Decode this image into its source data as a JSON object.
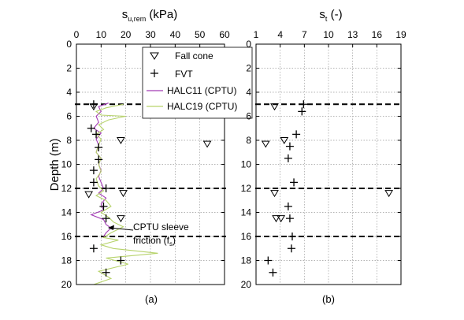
{
  "panels": {
    "a": {
      "label": "(a)",
      "title_main": "s",
      "title_sub": "u,rem",
      "title_rest": " (kPa)"
    },
    "b": {
      "label": "(b)",
      "title_main": "s",
      "title_sub": "t",
      "title_rest": " (-)"
    }
  },
  "ylabel": "Depth (m)",
  "legend": {
    "fall_cone": "Fall cone",
    "fvt": "FVT",
    "halc11": "HALC11 (CPTU)",
    "halc19": "HALC19 (CPTU)"
  },
  "annotation": {
    "line1": "CPTU sleeve",
    "line2_a": "friction (f",
    "line2_sub": "s",
    "line2_b": ")"
  },
  "colors": {
    "halc11": "#a23ab5",
    "halc19": "#b7d36b",
    "marker": "#000000",
    "grid": "#9a9a9a"
  },
  "chart_data": [
    {
      "type": "scatter",
      "ylabel": "Depth (m)",
      "xlim": [
        0,
        60
      ],
      "ylim": [
        20,
        0
      ],
      "xticks": [
        0,
        10,
        20,
        30,
        40,
        50,
        60
      ],
      "yticks": [
        0,
        2,
        4,
        6,
        8,
        10,
        12,
        14,
        16,
        18,
        20
      ],
      "grid": true,
      "legend_position": "top-right",
      "layer_boundaries_depth": [
        5,
        12,
        16
      ],
      "series": [
        {
          "name": "Fall cone",
          "marker": "triangle-down",
          "points": [
            [
              7,
              5.2
            ],
            [
              18,
              8
            ],
            [
              53,
              8.3
            ],
            [
              5,
              12.5
            ],
            [
              19,
              12.4
            ],
            [
              18,
              14.5
            ]
          ]
        },
        {
          "name": "FVT",
          "marker": "plus",
          "points": [
            [
              7,
              5
            ],
            [
              6,
              7
            ],
            [
              8,
              7.5
            ],
            [
              9,
              8.6
            ],
            [
              9,
              9.6
            ],
            [
              7,
              10.5
            ],
            [
              7,
              11.5
            ],
            [
              12,
              12
            ],
            [
              11,
              13.5
            ],
            [
              12,
              14.5
            ],
            [
              7,
              17
            ],
            [
              18,
              18
            ],
            [
              12,
              19
            ]
          ]
        },
        {
          "name": "HALC11 (CPTU)",
          "line": true,
          "points": [
            [
              13,
              4.9
            ],
            [
              9,
              5.2
            ],
            [
              10,
              5.6
            ],
            [
              8,
              6
            ],
            [
              9,
              6.5
            ],
            [
              7,
              7
            ],
            [
              10,
              7.4
            ],
            [
              8,
              7.9
            ],
            [
              9,
              8.4
            ],
            [
              8,
              9
            ],
            [
              10,
              9.5
            ],
            [
              9,
              10
            ],
            [
              10,
              10.5
            ],
            [
              9,
              11
            ],
            [
              10,
              11.5
            ],
            [
              11,
              12
            ],
            [
              9,
              12.4
            ],
            [
              12,
              12.8
            ],
            [
              10,
              13.3
            ],
            [
              11,
              13.8
            ],
            [
              6,
              14.2
            ],
            [
              11,
              14.6
            ],
            [
              12,
              15
            ],
            [
              14,
              15.3
            ],
            [
              12,
              15.7
            ],
            [
              11,
              16
            ]
          ]
        },
        {
          "name": "HALC19 (CPTU)",
          "line": true,
          "points": [
            [
              19,
              5
            ],
            [
              12,
              5.3
            ],
            [
              8,
              5.6
            ],
            [
              10,
              5.9
            ],
            [
              20,
              6
            ],
            [
              13,
              6.3
            ],
            [
              9,
              6.7
            ],
            [
              11,
              7.1
            ],
            [
              8,
              7.5
            ],
            [
              10,
              7.9
            ],
            [
              9,
              8.4
            ],
            [
              8,
              9
            ],
            [
              10,
              9.5
            ],
            [
              9,
              10
            ],
            [
              10,
              10.6
            ],
            [
              8,
              11.2
            ],
            [
              9,
              11.8
            ],
            [
              11,
              12.2
            ],
            [
              8,
              12.6
            ],
            [
              12,
              13
            ],
            [
              14,
              13.5
            ],
            [
              10,
              14
            ],
            [
              13,
              14.4
            ],
            [
              15,
              14.8
            ],
            [
              19,
              15.2
            ],
            [
              14,
              15.7
            ],
            [
              11,
              16.1
            ],
            [
              17,
              16.3
            ],
            [
              10,
              16.7
            ],
            [
              15,
              17
            ],
            [
              33,
              17.4
            ],
            [
              12,
              17.8
            ],
            [
              21,
              18.3
            ],
            [
              9,
              18.9
            ],
            [
              14,
              19.5
            ],
            [
              7,
              20
            ]
          ]
        }
      ]
    },
    {
      "type": "scatter",
      "ylabel": "",
      "xlim": [
        1,
        19
      ],
      "ylim": [
        20,
        0
      ],
      "xticks": [
        1,
        4,
        7,
        10,
        13,
        16,
        19
      ],
      "yticks": [
        0,
        2,
        4,
        6,
        8,
        10,
        12,
        14,
        16,
        18,
        20
      ],
      "grid": true,
      "layer_boundaries_depth": [
        5,
        12,
        16
      ],
      "series": [
        {
          "name": "Fall cone",
          "marker": "triangle-down",
          "points": [
            [
              3.3,
              5.2
            ],
            [
              2.2,
              8.3
            ],
            [
              4.5,
              8
            ],
            [
              3.3,
              12.4
            ],
            [
              17.5,
              12.4
            ],
            [
              3.5,
              14.5
            ],
            [
              4.1,
              14.5
            ]
          ]
        },
        {
          "name": "FVT",
          "marker": "plus",
          "points": [
            [
              6.9,
              5
            ],
            [
              6.7,
              5.6
            ],
            [
              6.0,
              7.5
            ],
            [
              5.2,
              8.5
            ],
            [
              5.0,
              9.5
            ],
            [
              5.7,
              11.5
            ],
            [
              5.0,
              13.5
            ],
            [
              5.2,
              14.5
            ],
            [
              5.5,
              16
            ],
            [
              5.4,
              17
            ],
            [
              2.5,
              18
            ],
            [
              3.1,
              19
            ]
          ]
        }
      ]
    }
  ]
}
